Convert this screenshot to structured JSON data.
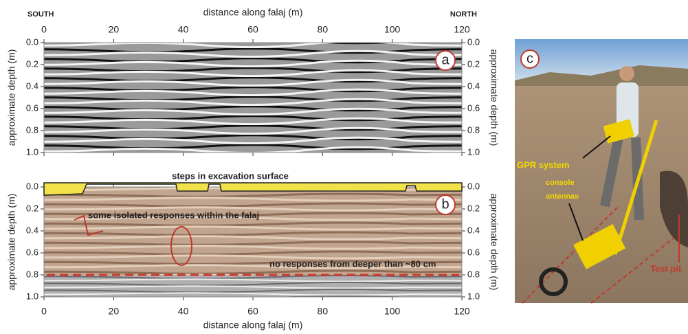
{
  "panel_a": {
    "label": "a",
    "top_left": "SOUTH",
    "top_right": "NORTH",
    "x_title": "distance along falaj (m)",
    "y_title": "approximate depth (m)",
    "xlim": [
      0,
      120
    ],
    "ylim": [
      0,
      1
    ],
    "xticks": [
      0,
      20,
      40,
      60,
      80,
      100,
      120
    ],
    "yticks": [
      {
        "value": 0,
        "label": "0.0"
      },
      0.2,
      0.4,
      0.6,
      0.8,
      {
        "value": 1,
        "label": "1.0"
      }
    ]
  },
  "panel_b": {
    "label": "b",
    "x_title": "distance along falaj (m)",
    "y_title": "approximate depth (m)",
    "xlim": [
      0,
      120
    ],
    "ylim": [
      0,
      1
    ],
    "xticks": [
      0,
      20,
      40,
      60,
      80,
      100,
      120
    ],
    "yticks": [
      {
        "value": 0,
        "label": "0.0"
      },
      0.2,
      0.4,
      0.6,
      0.8,
      {
        "value": 1,
        "label": "1.0"
      }
    ],
    "cutoff_depth": 0.8,
    "annotations": {
      "steps": "steps in excavation surface",
      "isolated": "some isolated responses within the falaj",
      "no_response": "no responses from deeper than ~80 cm"
    }
  },
  "panel_c": {
    "label": "c",
    "gpr": "GPR system",
    "console": "console",
    "antennas": "antennas",
    "pit": "Test pit"
  }
}
